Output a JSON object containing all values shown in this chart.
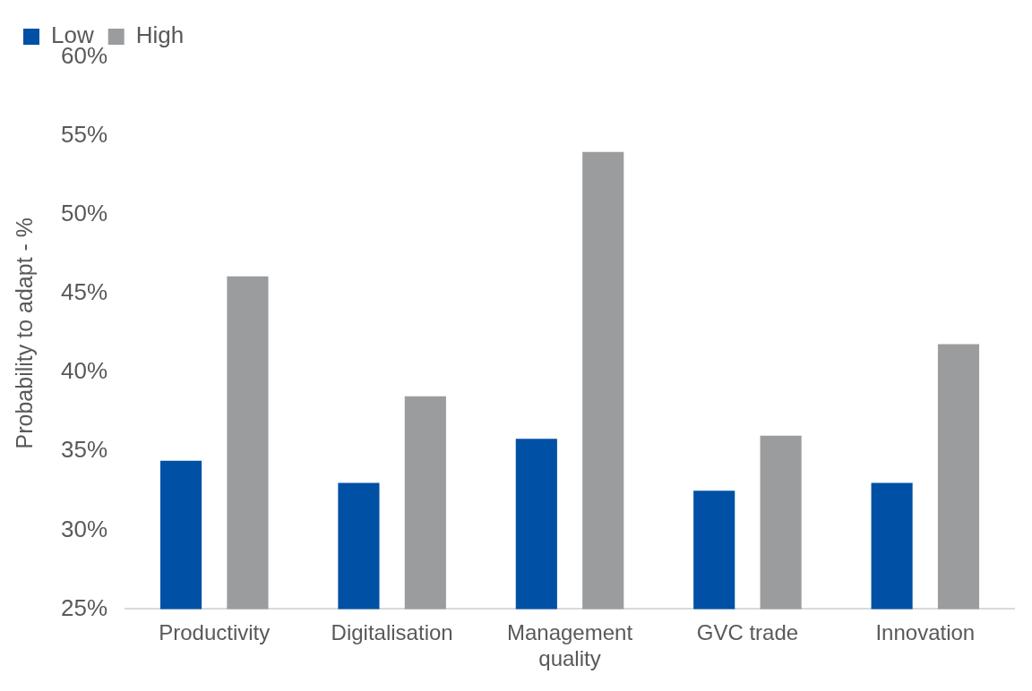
{
  "chart_data": {
    "type": "bar",
    "ylabel": "Probability to adapt - %",
    "categories": [
      "Productivity",
      "Digitalisation",
      "Management quality",
      "GVC trade",
      "Innovation"
    ],
    "series": [
      {
        "name": "Low",
        "color": "#0050a5",
        "values": [
          34.4,
          33.0,
          35.8,
          32.5,
          33.0
        ]
      },
      {
        "name": "High",
        "color": "#9a9c9d",
        "values": [
          46.1,
          38.5,
          54.0,
          36.0,
          41.8
        ]
      }
    ],
    "ylim": [
      25,
      60
    ],
    "yticks": [
      {
        "value": 25,
        "label": "25%"
      },
      {
        "value": 30,
        "label": "30%"
      },
      {
        "value": 35,
        "label": "35%"
      },
      {
        "value": 40,
        "label": "40%"
      },
      {
        "value": 45,
        "label": "45%"
      },
      {
        "value": 50,
        "label": "50%"
      },
      {
        "value": 55,
        "label": "55%"
      },
      {
        "value": 60,
        "label": "60%"
      }
    ],
    "grid": false,
    "legend": "top left"
  }
}
